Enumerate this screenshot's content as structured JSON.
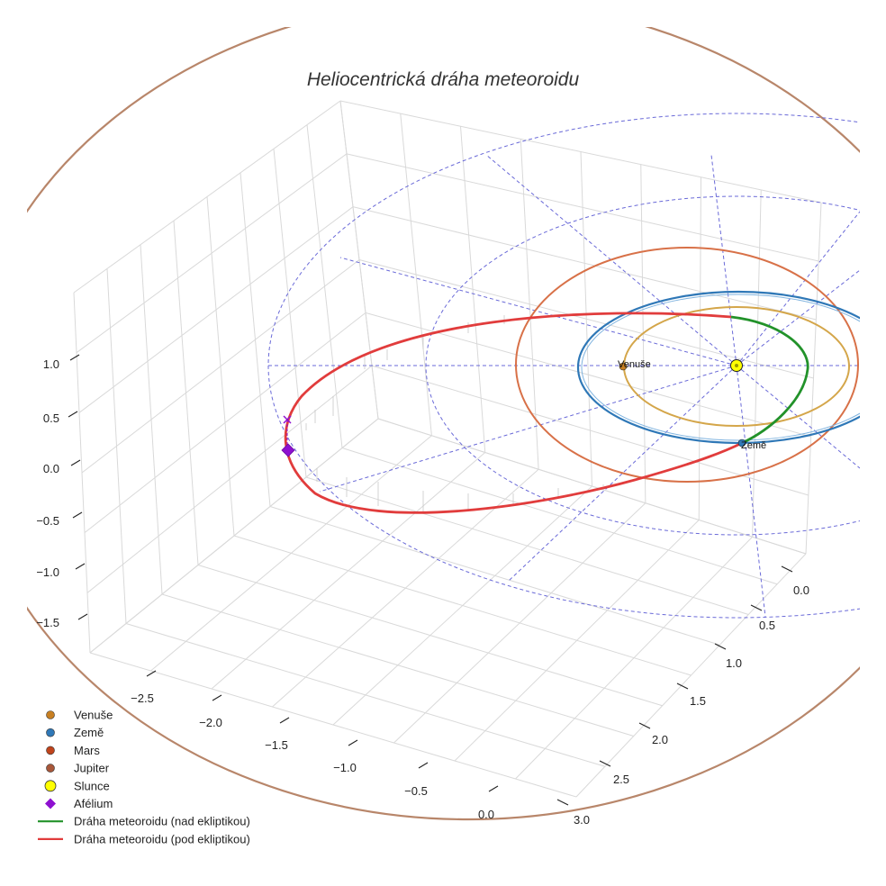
{
  "chart_data": {
    "type": "line3d",
    "title": "Heliocentrická dráha meteoroidu",
    "x_ticks": [
      "−2.5",
      "−2.0",
      "−1.5",
      "−1.0",
      "−0.5",
      "0.0"
    ],
    "y_ticks": [
      "0.0",
      "0.5",
      "1.0",
      "1.5",
      "2.0",
      "2.5",
      "3.0"
    ],
    "z_ticks": [
      "1.0",
      "0.5",
      "0.0",
      "−0.5",
      "−1.0",
      "−1.5"
    ],
    "point_labels": {
      "venus": "Venuše",
      "earth": "Země"
    },
    "legend": [
      {
        "label": "Venuše",
        "marker": "circle",
        "color": "#c77f22"
      },
      {
        "label": "Země",
        "marker": "circle",
        "color": "#2f78b7"
      },
      {
        "label": "Mars",
        "marker": "circle",
        "color": "#c0441c"
      },
      {
        "label": "Jupiter",
        "marker": "circle",
        "color": "#a8573a"
      },
      {
        "label": "Slunce",
        "marker": "circle-large",
        "color": "#ffff00"
      },
      {
        "label": "Afélium",
        "marker": "diamond",
        "color": "#8e10d0"
      },
      {
        "label": "Dráha meteoroidu (nad ekliptikou)",
        "marker": "line",
        "color": "#22922a"
      },
      {
        "label": "Dráha meteoroidu (pod ekliptikou)",
        "marker": "line",
        "color": "#e13c3c"
      }
    ],
    "orbit_colors": {
      "venus": "#d4a64a",
      "earth": "#2f78b7",
      "mars": "#d87148",
      "jupiter": "#b8866a",
      "grid": "#6a6ad8"
    },
    "grid": true,
    "legend_position": "bottom-left"
  }
}
